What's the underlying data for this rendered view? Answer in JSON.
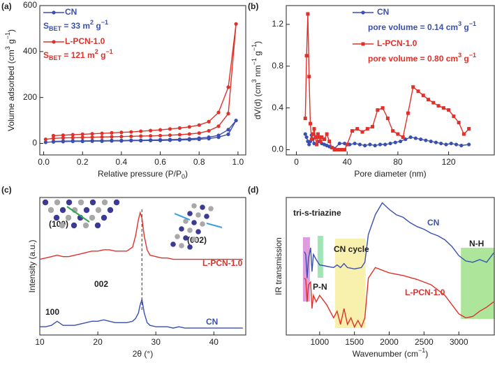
{
  "chart_data": [
    {
      "type": "line",
      "label": "(a)",
      "x_label": [
        "Relative pressure (P/P",
        {
          "sub": "0"
        },
        ")"
      ],
      "y_label": [
        "Volume adsorbed (cm",
        {
          "sup": "3"
        },
        " g",
        {
          "sup": "−1"
        },
        ")"
      ],
      "xlim": [
        -0.02,
        1.04
      ],
      "ylim": [
        -50,
        600
      ],
      "xticks": [
        {
          "value": 0,
          "label": "0.0"
        },
        0.2,
        0.4,
        0.6,
        0.8,
        {
          "value": 1,
          "label": "1.0"
        }
      ],
      "yticks": [
        0,
        200,
        400,
        600
      ],
      "series": [
        {
          "name": "CN",
          "color": "#3a4fb0",
          "marker": "circle",
          "note": [
            "S",
            {
              "sub": "BET"
            },
            " = 33 m",
            {
              "sup": "2"
            },
            " g",
            {
              "sup": "−1"
            }
          ],
          "x": [
            0.01,
            0.05,
            0.1,
            0.15,
            0.2,
            0.25,
            0.3,
            0.35,
            0.4,
            0.45,
            0.5,
            0.55,
            0.6,
            0.65,
            0.7,
            0.75,
            0.8,
            0.85,
            0.9,
            0.95,
            0.99,
            0.95,
            0.9,
            0.85,
            0.8,
            0.75,
            0.7,
            0.65,
            0.6,
            0.55,
            0.5,
            0.45,
            0.4,
            0.35,
            0.3,
            0.25,
            0.2,
            0.15,
            0.1,
            0.05
          ],
          "values": [
            5,
            7,
            8,
            9,
            9,
            10,
            10,
            11,
            11,
            12,
            12,
            13,
            13,
            14,
            15,
            16,
            18,
            21,
            27,
            40,
            100,
            60,
            35,
            27,
            23,
            20,
            18,
            17,
            16,
            15,
            14,
            14,
            13,
            13,
            12,
            12,
            11,
            11,
            10,
            9
          ]
        },
        {
          "name": "L-PCN-1.0",
          "color": "#e0302a",
          "marker": "circle",
          "note": [
            "S",
            {
              "sub": "BET"
            },
            " = 121 m",
            {
              "sup": "2"
            },
            " g",
            {
              "sup": "−1"
            }
          ],
          "x": [
            0.01,
            0.05,
            0.1,
            0.15,
            0.2,
            0.25,
            0.3,
            0.35,
            0.4,
            0.45,
            0.5,
            0.55,
            0.6,
            0.65,
            0.7,
            0.75,
            0.8,
            0.85,
            0.9,
            0.95,
            0.99,
            0.95,
            0.9,
            0.85,
            0.8,
            0.75,
            0.7,
            0.65,
            0.6,
            0.55,
            0.5,
            0.45,
            0.4,
            0.35,
            0.3,
            0.25,
            0.2,
            0.15,
            0.1,
            0.05
          ],
          "values": [
            18,
            22,
            24,
            25,
            26,
            27,
            28,
            29,
            30,
            31,
            32,
            33,
            34,
            36,
            38,
            41,
            45,
            55,
            75,
            130,
            520,
            245,
            135,
            95,
            80,
            72,
            67,
            63,
            59,
            56,
            53,
            50,
            48,
            46,
            44,
            42,
            40,
            38,
            36,
            34
          ]
        }
      ]
    },
    {
      "type": "line",
      "label": "(b)",
      "x_label": [
        "Pore diameter (nm)"
      ],
      "y_label": [
        "dV(d) (cm",
        {
          "sup": "3"
        },
        " nm",
        {
          "sup": "−1"
        },
        " g",
        {
          "sup": "−1"
        },
        ")"
      ],
      "xlim": [
        -8,
        156
      ],
      "ylim": [
        -0.05,
        1.38
      ],
      "xticks": [
        0,
        40,
        80,
        120
      ],
      "yticks": [
        {
          "value": 0,
          "label": "0.0"
        },
        0.4,
        0.8,
        1.2
      ],
      "series": [
        {
          "name": "CN",
          "color": "#3a4fb0",
          "marker": "circle",
          "note": [
            "pore volume = 0.14 cm",
            {
              "sup": "3"
            },
            " g",
            {
              "sup": "−1"
            }
          ],
          "x": [
            7,
            8,
            9,
            10,
            11,
            12,
            13,
            14,
            16,
            18,
            20,
            22,
            24,
            26,
            28,
            30,
            34,
            38,
            42,
            46,
            50,
            54,
            58,
            62,
            66,
            70,
            74,
            78,
            82,
            86,
            90,
            94,
            98,
            102,
            106,
            110,
            114,
            118,
            122,
            126,
            130,
            136
          ],
          "values": [
            0.15,
            0.12,
            0.08,
            0.05,
            0.08,
            0.14,
            0.1,
            0.06,
            0.05,
            0.08,
            0.06,
            0.05,
            0.04,
            0.03,
            0.02,
            0.01,
            0.06,
            0.06,
            0.05,
            0.06,
            0.05,
            0.04,
            0.05,
            0.04,
            0.05,
            0.05,
            0.06,
            0.07,
            0.08,
            0.1,
            0.12,
            0.11,
            0.1,
            0.09,
            0.08,
            0.07,
            0.06,
            0.05,
            0.06,
            0.05,
            0.04,
            0.05
          ]
        },
        {
          "name": "L-PCN-1.0",
          "color": "#e0302a",
          "marker": "square",
          "note": [
            "pore volume = 0.80 cm",
            {
              "sup": "3"
            },
            " g",
            {
              "sup": "−1"
            }
          ],
          "x": [
            7,
            8,
            9,
            10,
            11,
            12,
            13,
            14,
            15,
            16,
            17,
            18,
            19,
            20,
            22,
            24,
            26,
            28,
            30,
            32,
            34,
            36,
            38,
            40,
            44,
            48,
            52,
            56,
            60,
            64,
            68,
            72,
            76,
            80,
            84,
            88,
            92,
            96,
            100,
            104,
            108,
            112,
            116,
            120,
            124,
            128,
            132,
            136
          ],
          "values": [
            0.3,
            0.9,
            1.3,
            0.7,
            0.25,
            0.1,
            0.15,
            0.2,
            0.12,
            0.05,
            0.15,
            0.12,
            0.08,
            0.12,
            0.1,
            0.15,
            0.08,
            0.02,
            0,
            0,
            0,
            0,
            0,
            0.05,
            0.18,
            0.2,
            0.17,
            0.2,
            0.22,
            0.38,
            0.4,
            0.3,
            0.18,
            0.15,
            0.12,
            0.35,
            0.6,
            0.56,
            0.52,
            0.48,
            0.45,
            0.42,
            0.4,
            0.38,
            0.32,
            0.26,
            0.15,
            0.2
          ]
        }
      ]
    },
    {
      "type": "line",
      "label": "(c)",
      "x_label": [
        "2θ (°)"
      ],
      "y_label": [
        "Intensity (a.u.)"
      ],
      "xlim": [
        10,
        45.5
      ],
      "ylim": [
        0,
        100
      ],
      "xticks": [
        10,
        20,
        30,
        40
      ],
      "ref_line_x": 27.6,
      "annotations": [
        {
          "text": "(100)"
        },
        {
          "text": "(002)"
        },
        {
          "text": "002"
        },
        {
          "text": "100"
        }
      ],
      "series": [
        {
          "name": "CN",
          "color": "#3a4fb0",
          "x": [
            10,
            11,
            12,
            13,
            14,
            15,
            16,
            17,
            18,
            19,
            20,
            21,
            22,
            23,
            24,
            25,
            26,
            26.5,
            27,
            27.3,
            27.6,
            28,
            28.5,
            29,
            30,
            31,
            32,
            33,
            34,
            35,
            36,
            37,
            38,
            39,
            40,
            41,
            42,
            43,
            44,
            45
          ],
          "values": [
            6,
            6,
            7,
            10,
            7,
            7,
            7,
            8,
            9,
            10,
            10,
            11,
            10,
            9,
            9,
            9,
            10,
            12,
            16,
            22,
            26,
            16,
            9,
            7,
            6,
            6,
            6,
            5,
            6,
            5,
            5,
            5,
            5,
            5,
            5,
            5,
            5,
            5,
            5,
            5
          ]
        },
        {
          "name": "L-PCN-1.0",
          "color": "#e0302a",
          "x": [
            10,
            11,
            12,
            13,
            14,
            15,
            16,
            17,
            18,
            19,
            20,
            21,
            22,
            23,
            24,
            25,
            26,
            26.5,
            27,
            27.3,
            27.6,
            28,
            28.5,
            29,
            30,
            31,
            32,
            33,
            34,
            35,
            36,
            37,
            38,
            39,
            40,
            41,
            42,
            43,
            44,
            45
          ],
          "values": [
            55,
            56,
            57,
            58,
            57,
            57,
            58,
            59,
            60,
            61,
            61,
            62,
            62,
            61,
            61,
            61,
            64,
            72,
            84,
            89,
            85,
            72,
            62,
            58,
            57,
            56,
            56,
            55,
            55,
            55,
            55,
            55,
            55,
            55,
            55,
            55,
            55,
            55,
            55,
            55
          ]
        }
      ]
    },
    {
      "type": "line",
      "label": "(d)",
      "x_label": [
        "Wavenumber (cm",
        {
          "sup": "−1"
        },
        ")"
      ],
      "y_label": [
        "IR transmission"
      ],
      "xlim": [
        520,
        3510
      ],
      "ylim": [
        0,
        104
      ],
      "xticks": [
        1000,
        1500,
        2000,
        2500,
        3000
      ],
      "bands": [
        {
          "from": 760,
          "to": 860,
          "color": "#d98bd9"
        },
        {
          "from": 970,
          "to": 1050,
          "color": "#8fe0a8"
        },
        {
          "from": 1220,
          "to": 1660,
          "color": "#f7ef9f"
        },
        {
          "from": 3030,
          "to": 3510,
          "color": "#9fe08a"
        }
      ],
      "annotations": [
        {
          "text": "tri-s-triazine"
        },
        {
          "text": "P-N"
        },
        {
          "text": "CN cycle"
        },
        {
          "text": "N-H"
        }
      ],
      "series": [
        {
          "name": "CN",
          "color": "#3a4fb0",
          "x": [
            780,
            800,
            820,
            840,
            870,
            890,
            910,
            950,
            1000,
            1100,
            1200,
            1250,
            1300,
            1350,
            1400,
            1500,
            1600,
            1650,
            1700,
            1800,
            1900,
            2000,
            2100,
            2200,
            2300,
            2400,
            2500,
            2600,
            2700,
            2800,
            2900,
            3000,
            3100,
            3200,
            3300,
            3400,
            3500
          ],
          "values": [
            63,
            61,
            43,
            58,
            66,
            48,
            61,
            57,
            53,
            52,
            51,
            53,
            51,
            54,
            51,
            50,
            51,
            55,
            76,
            91,
            100,
            95,
            91,
            89,
            85,
            82,
            80,
            77,
            75,
            72,
            67,
            60,
            56,
            55,
            57,
            55,
            62
          ]
        },
        {
          "name": "L-PCN-1.0",
          "color": "#e0302a",
          "x": [
            780,
            800,
            820,
            840,
            870,
            890,
            910,
            950,
            1000,
            1100,
            1200,
            1250,
            1300,
            1350,
            1400,
            1450,
            1500,
            1550,
            1600,
            1650,
            1700,
            1800,
            1900,
            2000,
            2200,
            2400,
            2600,
            2800,
            2900,
            3000,
            3100,
            3200,
            3300,
            3400,
            3500
          ],
          "values": [
            43,
            42,
            25,
            38,
            40,
            20,
            30,
            25,
            30,
            23,
            13,
            18,
            8,
            20,
            8,
            13,
            6,
            11,
            6,
            13,
            43,
            51,
            49,
            47,
            45,
            42,
            38,
            30,
            23,
            16,
            13,
            14,
            18,
            21,
            25
          ]
        }
      ]
    }
  ]
}
